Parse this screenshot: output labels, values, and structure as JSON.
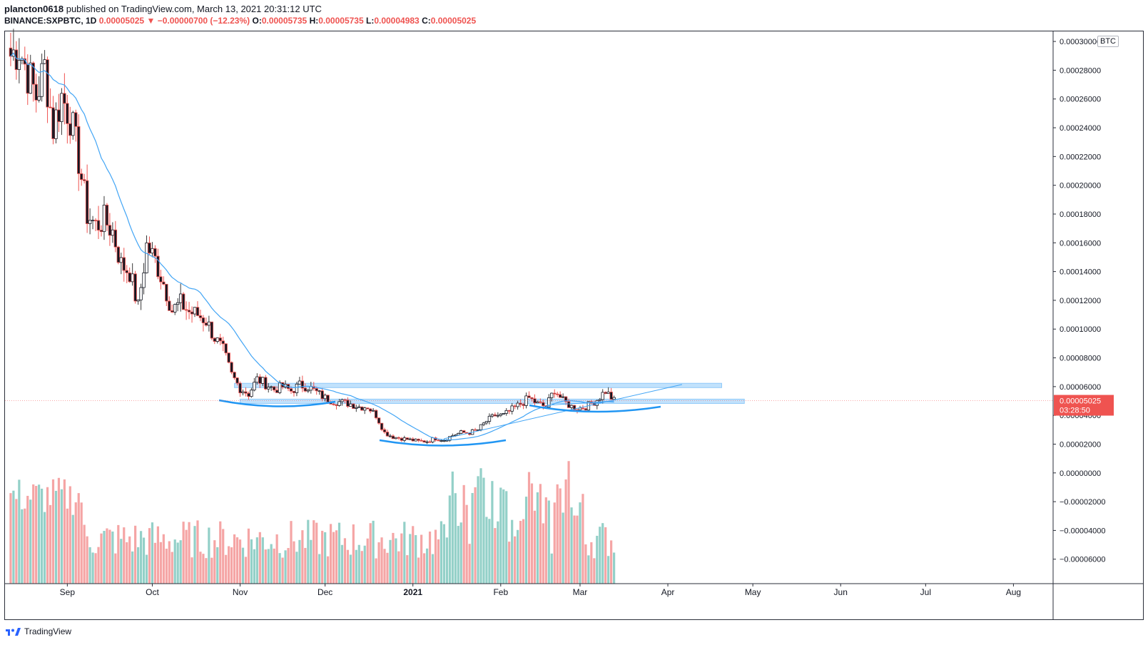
{
  "header": {
    "author": "plancton0618",
    "published": "published on TradingView.com, March 13, 2021 20:31:12 UTC",
    "symbol": "BINANCE:SXPBTC, 1D",
    "last": "0.00005025",
    "change": "−0.00000700 (−12.23%)",
    "o_label": "O:",
    "o": "0.00005735",
    "h_label": "H:",
    "h": "0.00005735",
    "l_label": "L:",
    "l": "0.00004983",
    "c_label": "C:",
    "c": "0.00005025"
  },
  "currency_badge": "BTC",
  "price_label": {
    "value": "0.00005025",
    "countdown": "03:28:50"
  },
  "brand": "TradingView",
  "colors": {
    "up": "#26a69a",
    "down": "#ef5350",
    "up_vol": "#93d0c8",
    "down_vol": "#f5a5a5",
    "ma": "#42a5f5",
    "zone": "#90caf9",
    "arc": "#2196f3"
  },
  "chart_data": {
    "type": "candlestick",
    "y_axis_ticks": [
      "0.00030000",
      "0.00028000",
      "0.00026000",
      "0.00024000",
      "0.00022000",
      "0.00020000",
      "0.00018000",
      "0.00016000",
      "0.00014000",
      "0.00012000",
      "0.00010000",
      "0.00008000",
      "0.00006000",
      "0.00004000",
      "0.00002000",
      "0.00000000",
      "−0.00002000",
      "−0.00004000",
      "−0.00006000"
    ],
    "ylim": [
      -7.7e-05,
      0.000307
    ],
    "x_axis_ticks": [
      {
        "label": "Sep",
        "date": "2020-09-01"
      },
      {
        "label": "Oct",
        "date": "2020-10-01"
      },
      {
        "label": "Nov",
        "date": "2020-11-01"
      },
      {
        "label": "Dec",
        "date": "2020-12-01"
      },
      {
        "label": "2021",
        "date": "2021-01-01"
      },
      {
        "label": "Feb",
        "date": "2021-02-01"
      },
      {
        "label": "Mar",
        "date": "2021-03-01"
      },
      {
        "label": "Apr",
        "date": "2021-04-01"
      },
      {
        "label": "May",
        "date": "2021-05-01"
      },
      {
        "label": "Jun",
        "date": "2021-06-01"
      },
      {
        "label": "Jul",
        "date": "2021-07-01"
      },
      {
        "label": "Aug",
        "date": "2021-08-01"
      }
    ],
    "xlim": [
      "2020-08-10",
      "2021-08-15"
    ],
    "series_close": [
      {
        "date": "2020-08-12",
        "close": 0.00029
      },
      {
        "date": "2020-08-15",
        "close": 0.000296
      },
      {
        "date": "2020-08-18",
        "close": 0.000278
      },
      {
        "date": "2020-08-21",
        "close": 0.000262
      },
      {
        "date": "2020-08-24",
        "close": 0.000282
      },
      {
        "date": "2020-08-27",
        "close": 0.00024
      },
      {
        "date": "2020-08-30",
        "close": 0.000262
      },
      {
        "date": "2020-09-02",
        "close": 0.000248
      },
      {
        "date": "2020-09-05",
        "close": 0.000218
      },
      {
        "date": "2020-09-08",
        "close": 0.00018
      },
      {
        "date": "2020-09-11",
        "close": 0.000172
      },
      {
        "date": "2020-09-14",
        "close": 0.000176
      },
      {
        "date": "2020-09-17",
        "close": 0.000168
      },
      {
        "date": "2020-09-20",
        "close": 0.000145
      },
      {
        "date": "2020-09-23",
        "close": 0.00014
      },
      {
        "date": "2020-09-26",
        "close": 0.000115
      },
      {
        "date": "2020-09-29",
        "close": 0.000158
      },
      {
        "date": "2020-10-02",
        "close": 0.000148
      },
      {
        "date": "2020-10-05",
        "close": 0.000132
      },
      {
        "date": "2020-10-08",
        "close": 0.000113
      },
      {
        "date": "2020-10-11",
        "close": 0.000118
      },
      {
        "date": "2020-10-14",
        "close": 0.000112
      },
      {
        "date": "2020-10-17",
        "close": 0.00011
      },
      {
        "date": "2020-10-20",
        "close": 0.000106
      },
      {
        "date": "2020-10-23",
        "close": 9.4e-05
      },
      {
        "date": "2020-10-26",
        "close": 8.5e-05
      },
      {
        "date": "2020-10-29",
        "close": 6.8e-05
      },
      {
        "date": "2020-11-01",
        "close": 5.9e-05
      },
      {
        "date": "2020-11-04",
        "close": 5.5e-05
      },
      {
        "date": "2020-11-07",
        "close": 6.5e-05
      },
      {
        "date": "2020-11-10",
        "close": 6.2e-05
      },
      {
        "date": "2020-11-13",
        "close": 5.8e-05
      },
      {
        "date": "2020-11-16",
        "close": 6e-05
      },
      {
        "date": "2020-11-19",
        "close": 5.7e-05
      },
      {
        "date": "2020-11-22",
        "close": 6.1e-05
      },
      {
        "date": "2020-11-25",
        "close": 6e-05
      },
      {
        "date": "2020-11-28",
        "close": 5.6e-05
      },
      {
        "date": "2020-12-01",
        "close": 5.2e-05
      },
      {
        "date": "2020-12-04",
        "close": 5e-05
      },
      {
        "date": "2020-12-07",
        "close": 4.9e-05
      },
      {
        "date": "2020-12-10",
        "close": 4.8e-05
      },
      {
        "date": "2020-12-13",
        "close": 4.6e-05
      },
      {
        "date": "2020-12-16",
        "close": 4.6e-05
      },
      {
        "date": "2020-12-19",
        "close": 4e-05
      },
      {
        "date": "2020-12-22",
        "close": 2.8e-05
      },
      {
        "date": "2020-12-25",
        "close": 2.5e-05
      },
      {
        "date": "2020-12-28",
        "close": 2.4e-05
      },
      {
        "date": "2020-12-31",
        "close": 2.3e-05
      },
      {
        "date": "2021-01-03",
        "close": 2.2e-05
      },
      {
        "date": "2021-01-06",
        "close": 2.2e-05
      },
      {
        "date": "2021-01-09",
        "close": 2.4e-05
      },
      {
        "date": "2021-01-12",
        "close": 2.3e-05
      },
      {
        "date": "2021-01-15",
        "close": 2.6e-05
      },
      {
        "date": "2021-01-18",
        "close": 2.8e-05
      },
      {
        "date": "2021-01-21",
        "close": 2.8e-05
      },
      {
        "date": "2021-01-24",
        "close": 3e-05
      },
      {
        "date": "2021-01-27",
        "close": 3.6e-05
      },
      {
        "date": "2021-01-30",
        "close": 4e-05
      },
      {
        "date": "2021-02-02",
        "close": 4e-05
      },
      {
        "date": "2021-02-05",
        "close": 4.4e-05
      },
      {
        "date": "2021-02-08",
        "close": 4.8e-05
      },
      {
        "date": "2021-02-11",
        "close": 5.2e-05
      },
      {
        "date": "2021-02-14",
        "close": 4.8e-05
      },
      {
        "date": "2021-02-17",
        "close": 4.6e-05
      },
      {
        "date": "2021-02-20",
        "close": 5.8e-05
      },
      {
        "date": "2021-02-23",
        "close": 5e-05
      },
      {
        "date": "2021-02-26",
        "close": 4.6e-05
      },
      {
        "date": "2021-03-01",
        "close": 4.5e-05
      },
      {
        "date": "2021-03-04",
        "close": 4.7e-05
      },
      {
        "date": "2021-03-07",
        "close": 5.1e-05
      },
      {
        "date": "2021-03-10",
        "close": 5.7e-05
      },
      {
        "date": "2021-03-13",
        "close": 5e-05
      }
    ],
    "annotations": [
      {
        "type": "horizontal-zone",
        "y_range": [
          5.93e-05,
          6.23e-05
        ],
        "x_range": [
          "2020-10-30",
          "2021-04-20"
        ]
      },
      {
        "type": "horizontal-zone",
        "y_range": [
          4.83e-05,
          5.13e-05
        ],
        "x_range": [
          "2020-11-01",
          "2021-04-28"
        ]
      },
      {
        "type": "trendline",
        "from": {
          "date": "2021-01-12",
          "value": 2.38e-05
        },
        "to": {
          "date": "2021-04-06",
          "value": 6.15e-05
        }
      },
      {
        "type": "trendline",
        "from": {
          "date": "2021-02-17",
          "value": 4.7e-05
        },
        "to": {
          "date": "2021-03-13",
          "value": 5e-05
        }
      }
    ]
  }
}
